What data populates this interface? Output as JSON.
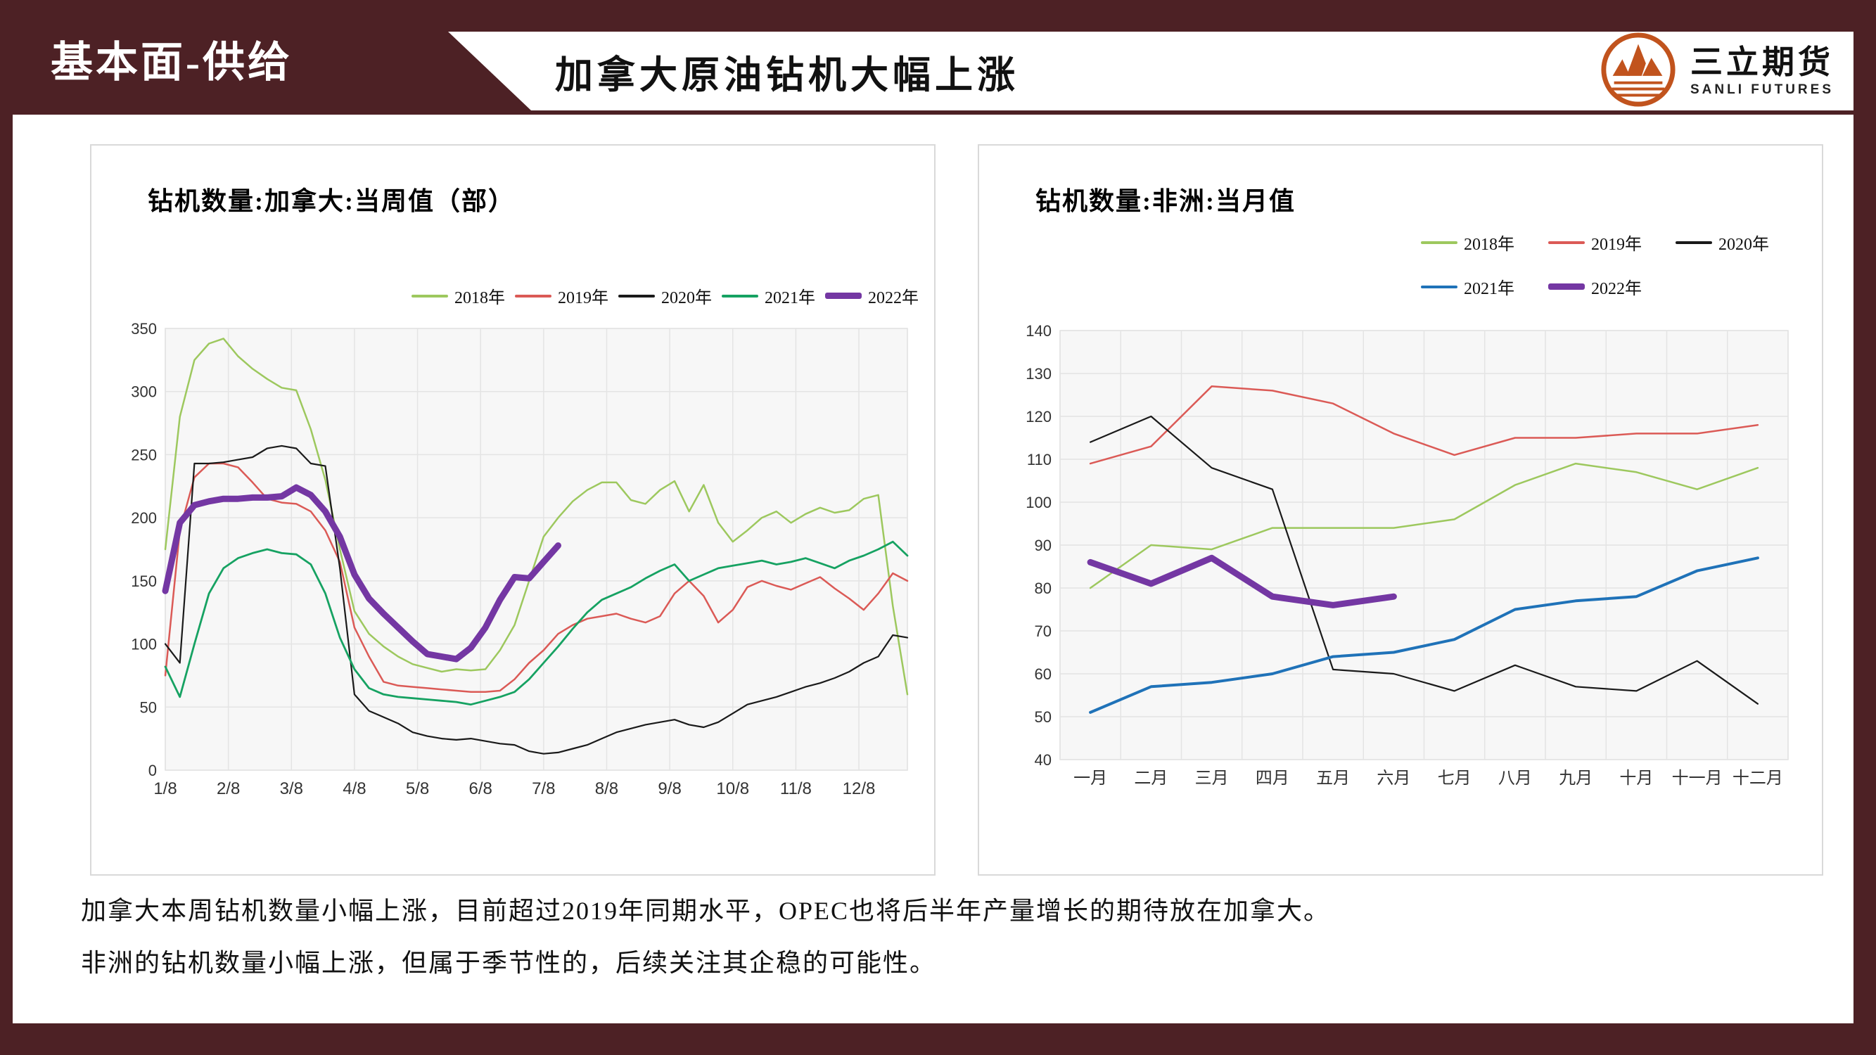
{
  "header": {
    "section_label": "基本面-供给",
    "title": "加拿大原油钻机大幅上涨",
    "logo": {
      "name": "三立期货",
      "subtitle": "SANLI FUTURES"
    }
  },
  "notes": [
    "加拿大本周钻机数量小幅上涨，目前超过2019年同期水平，OPEC也将后半年产量增长的期待放在加拿大。",
    "非洲的钻机数量小幅上涨，但属于季节性的，后续关注其企稳的可能性。"
  ],
  "colors": {
    "maroon": "#4D2125",
    "logo_orange": "#C1531D",
    "plot_bg": "#F7F7F7",
    "grid": "#E4E4E4",
    "green_2018": "#9DC85E",
    "red_2019": "#DB5A56",
    "black_2020": "#1A1A1A",
    "teal_2021_left": "#16A262",
    "blue_2021_right": "#1F72B8",
    "purple_2022": "#7437A3"
  },
  "chart_data": [
    {
      "type": "line",
      "title": "钻机数量:加拿大:当周值（部）",
      "x_axis_kind": "weekly",
      "points_total": 52,
      "x_tick_labels": [
        "1/8",
        "2/8",
        "3/8",
        "4/8",
        "5/8",
        "6/8",
        "7/8",
        "8/8",
        "9/8",
        "10/8",
        "11/8",
        "12/8"
      ],
      "ylabel": "",
      "ylim": [
        0,
        350
      ],
      "ytick_step": 50,
      "grid": true,
      "legend_position": "top-right",
      "series": [
        {
          "name": "2018年",
          "color": "#9DC85E",
          "width": 2.5,
          "values": [
            175,
            280,
            325,
            338,
            342,
            328,
            318,
            310,
            303,
            301,
            270,
            230,
            175,
            126,
            108,
            98,
            90,
            84,
            81,
            78,
            80,
            79,
            80,
            95,
            115,
            150,
            185,
            200,
            213,
            222,
            228,
            228,
            214,
            211,
            222,
            229,
            205,
            226,
            196,
            181,
            190,
            200,
            205,
            196,
            203,
            208,
            204,
            206,
            215,
            218,
            130,
            60
          ]
        },
        {
          "name": "2019年",
          "color": "#DB5A56",
          "width": 2.5,
          "values": [
            75,
            190,
            232,
            243,
            243,
            240,
            228,
            215,
            212,
            211,
            205,
            190,
            165,
            113,
            90,
            70,
            67,
            66,
            65,
            64,
            63,
            62,
            62,
            63,
            72,
            85,
            95,
            108,
            115,
            120,
            122,
            124,
            120,
            117,
            122,
            140,
            150,
            138,
            117,
            127,
            145,
            150,
            146,
            143,
            148,
            153,
            144,
            136,
            127,
            140,
            156,
            150
          ]
        },
        {
          "name": "2020年",
          "color": "#1A1A1A",
          "width": 2.2,
          "values": [
            100,
            85,
            243,
            243,
            244,
            246,
            248,
            255,
            257,
            255,
            243,
            241,
            160,
            60,
            47,
            42,
            37,
            30,
            27,
            25,
            24,
            25,
            23,
            21,
            20,
            15,
            13,
            14,
            17,
            20,
            25,
            30,
            33,
            36,
            38,
            40,
            36,
            34,
            38,
            45,
            52,
            55,
            58,
            62,
            66,
            69,
            73,
            78,
            85,
            90,
            107,
            105
          ]
        },
        {
          "name": "2021年",
          "color": "#16A262",
          "width": 2.8,
          "values": [
            82,
            58,
            100,
            140,
            160,
            168,
            172,
            175,
            172,
            171,
            163,
            140,
            105,
            80,
            65,
            60,
            58,
            57,
            56,
            55,
            54,
            52,
            55,
            58,
            62,
            72,
            85,
            98,
            112,
            125,
            135,
            140,
            145,
            152,
            158,
            163,
            150,
            155,
            160,
            162,
            164,
            166,
            163,
            165,
            168,
            164,
            160,
            166,
            170,
            175,
            181,
            170
          ]
        },
        {
          "name": "2022年",
          "color": "#7437A3",
          "width": 9,
          "values": [
            142,
            196,
            210,
            213,
            215,
            215,
            216,
            216,
            217,
            224,
            218,
            205,
            185,
            155,
            136,
            124,
            113,
            102,
            92,
            90,
            88,
            97,
            113,
            135,
            153,
            152,
            165,
            178
          ]
        }
      ]
    },
    {
      "type": "line",
      "title": "钻机数量:非洲:当月值",
      "x_axis_kind": "category",
      "categories": [
        "一月",
        "二月",
        "三月",
        "四月",
        "五月",
        "六月",
        "七月",
        "八月",
        "九月",
        "十月",
        "十一月",
        "十二月"
      ],
      "ylabel": "",
      "ylim": [
        40,
        140
      ],
      "ytick_step": 10,
      "grid": true,
      "legend_position": "top-right",
      "series": [
        {
          "name": "2018年",
          "color": "#9DC85E",
          "width": 2.5,
          "values": [
            80,
            90,
            89,
            94,
            94,
            94,
            96,
            104,
            109,
            107,
            103,
            108
          ]
        },
        {
          "name": "2019年",
          "color": "#DB5A56",
          "width": 2.5,
          "values": [
            109,
            113,
            127,
            126,
            123,
            116,
            111,
            115,
            115,
            116,
            116,
            118
          ]
        },
        {
          "name": "2020年",
          "color": "#1A1A1A",
          "width": 2.2,
          "values": [
            114,
            120,
            108,
            103,
            61,
            60,
            56,
            62,
            57,
            56,
            63,
            53
          ]
        },
        {
          "name": "2021年",
          "color": "#1F72B8",
          "width": 4,
          "values": [
            51,
            57,
            58,
            60,
            64,
            65,
            68,
            75,
            77,
            78,
            84,
            87
          ]
        },
        {
          "name": "2022年",
          "color": "#7437A3",
          "width": 9,
          "values": [
            86,
            81,
            87,
            78,
            76,
            78
          ]
        }
      ]
    }
  ]
}
